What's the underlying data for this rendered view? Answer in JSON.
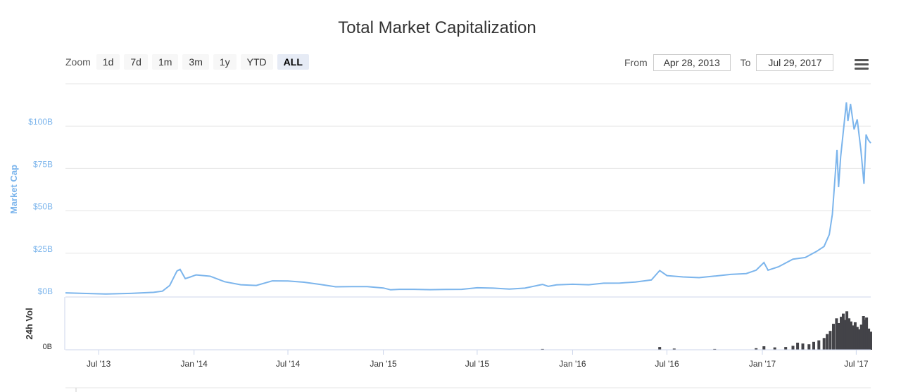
{
  "title": "Total Market Capitalization",
  "zoom": {
    "label": "Zoom",
    "buttons": [
      "1d",
      "7d",
      "1m",
      "3m",
      "1y",
      "YTD",
      "ALL"
    ],
    "active": "ALL"
  },
  "range": {
    "from_label": "From",
    "from_value": "Apr 28, 2013",
    "to_label": "To",
    "to_value": "Jul 29, 2017"
  },
  "colors": {
    "line": "#7cb5ec",
    "volume": "#434348",
    "grid": "#e6e6e6",
    "axis_label": "#7cb5ec"
  },
  "chart_data": [
    {
      "type": "line",
      "ylabel": "Market Cap",
      "yticks": [
        "$0B",
        "$25B",
        "$50B",
        "$75B",
        "$100B"
      ],
      "ylim": [
        0,
        125
      ],
      "xlim": [
        "2013-04-28",
        "2017-07-29"
      ],
      "x_ticks": [
        {
          "label": "Jul '13",
          "date": "2013-07-01"
        },
        {
          "label": "Jan '14",
          "date": "2014-01-01"
        },
        {
          "label": "Jul '14",
          "date": "2014-07-01"
        },
        {
          "label": "Jan '15",
          "date": "2015-01-01"
        },
        {
          "label": "Jul '15",
          "date": "2015-07-01"
        },
        {
          "label": "Jan '16",
          "date": "2016-01-01"
        },
        {
          "label": "Jul '16",
          "date": "2016-07-01"
        },
        {
          "label": "Jan '17",
          "date": "2017-01-01"
        },
        {
          "label": "Jul '17",
          "date": "2017-07-01"
        }
      ],
      "series": [
        {
          "points": [
            [
              "2013-04-28",
              1.6
            ],
            [
              "2013-06-01",
              1.3
            ],
            [
              "2013-07-15",
              0.9
            ],
            [
              "2013-09-01",
              1.3
            ],
            [
              "2013-10-15",
              1.9
            ],
            [
              "2013-11-01",
              2.6
            ],
            [
              "2013-11-15",
              6
            ],
            [
              "2013-11-29",
              14.5
            ],
            [
              "2013-12-05",
              15.5
            ],
            [
              "2013-12-15",
              10
            ],
            [
              "2013-12-25",
              11
            ],
            [
              "2014-01-05",
              12.2
            ],
            [
              "2014-02-01",
              11.4
            ],
            [
              "2014-03-01",
              8.2
            ],
            [
              "2014-04-01",
              6.4
            ],
            [
              "2014-05-01",
              6
            ],
            [
              "2014-06-01",
              8.7
            ],
            [
              "2014-07-01",
              8.6
            ],
            [
              "2014-08-01",
              7.9
            ],
            [
              "2014-09-01",
              6.6
            ],
            [
              "2014-10-01",
              5.2
            ],
            [
              "2014-11-01",
              5.3
            ],
            [
              "2014-12-01",
              5.3
            ],
            [
              "2015-01-01",
              4.5
            ],
            [
              "2015-01-15",
              3.4
            ],
            [
              "2015-02-01",
              3.7
            ],
            [
              "2015-03-01",
              3.7
            ],
            [
              "2015-04-01",
              3.5
            ],
            [
              "2015-05-01",
              3.6
            ],
            [
              "2015-06-01",
              3.7
            ],
            [
              "2015-07-01",
              4.6
            ],
            [
              "2015-08-01",
              4.4
            ],
            [
              "2015-09-01",
              3.8
            ],
            [
              "2015-10-01",
              4.4
            ],
            [
              "2015-11-04",
              6.6
            ],
            [
              "2015-11-15",
              5.5
            ],
            [
              "2015-12-01",
              6.3
            ],
            [
              "2016-01-01",
              6.7
            ],
            [
              "2016-02-01",
              6.4
            ],
            [
              "2016-03-01",
              7.3
            ],
            [
              "2016-04-01",
              7.4
            ],
            [
              "2016-05-01",
              8
            ],
            [
              "2016-06-01",
              9.2
            ],
            [
              "2016-06-17",
              14.8
            ],
            [
              "2016-07-01",
              11.8
            ],
            [
              "2016-08-01",
              11
            ],
            [
              "2016-09-01",
              10.6
            ],
            [
              "2016-10-01",
              11.5
            ],
            [
              "2016-11-01",
              12.5
            ],
            [
              "2016-12-01",
              13
            ],
            [
              "2016-12-20",
              15
            ],
            [
              "2017-01-04",
              19.5
            ],
            [
              "2017-01-12",
              15
            ],
            [
              "2017-02-01",
              17
            ],
            [
              "2017-03-01",
              21.5
            ],
            [
              "2017-03-25",
              22.5
            ],
            [
              "2017-04-15",
              26
            ],
            [
              "2017-04-30",
              29
            ],
            [
              "2017-05-10",
              36
            ],
            [
              "2017-05-16",
              48
            ],
            [
              "2017-05-25",
              86
            ],
            [
              "2017-05-28",
              64
            ],
            [
              "2017-06-01",
              82
            ],
            [
              "2017-06-12",
              114
            ],
            [
              "2017-06-15",
              103
            ],
            [
              "2017-06-20",
              113
            ],
            [
              "2017-06-27",
              98
            ],
            [
              "2017-07-03",
              104
            ],
            [
              "2017-07-10",
              86
            ],
            [
              "2017-07-16",
              66
            ],
            [
              "2017-07-20",
              95
            ],
            [
              "2017-07-24",
              92
            ],
            [
              "2017-07-29",
              90
            ]
          ]
        }
      ]
    },
    {
      "type": "bar",
      "ylabel": "24h Vol",
      "yticks": [
        "0B"
      ],
      "ylim": [
        0,
        6
      ],
      "points": [
        [
          "2013-05-01",
          0.01
        ],
        [
          "2013-11-29",
          0.04
        ],
        [
          "2014-02-01",
          0.03
        ],
        [
          "2015-01-15",
          0.03
        ],
        [
          "2015-11-04",
          0.1
        ],
        [
          "2016-06-17",
          0.35
        ],
        [
          "2016-07-15",
          0.15
        ],
        [
          "2016-10-01",
          0.1
        ],
        [
          "2016-12-20",
          0.2
        ],
        [
          "2017-01-04",
          0.45
        ],
        [
          "2017-01-25",
          0.3
        ],
        [
          "2017-02-15",
          0.35
        ],
        [
          "2017-03-01",
          0.5
        ],
        [
          "2017-03-10",
          0.9
        ],
        [
          "2017-03-20",
          0.8
        ],
        [
          "2017-04-01",
          0.7
        ],
        [
          "2017-04-10",
          1.0
        ],
        [
          "2017-04-20",
          1.2
        ],
        [
          "2017-04-30",
          1.5
        ],
        [
          "2017-05-06",
          2.0
        ],
        [
          "2017-05-12",
          2.4
        ],
        [
          "2017-05-18",
          3.3
        ],
        [
          "2017-05-24",
          4.0
        ],
        [
          "2017-05-28",
          3.4
        ],
        [
          "2017-06-02",
          4.2
        ],
        [
          "2017-06-06",
          4.6
        ],
        [
          "2017-06-10",
          3.8
        ],
        [
          "2017-06-13",
          4.9
        ],
        [
          "2017-06-17",
          4.0
        ],
        [
          "2017-06-21",
          3.6
        ],
        [
          "2017-06-25",
          3.1
        ],
        [
          "2017-06-29",
          3.5
        ],
        [
          "2017-07-03",
          2.9
        ],
        [
          "2017-07-07",
          2.6
        ],
        [
          "2017-07-11",
          3.2
        ],
        [
          "2017-07-15",
          4.3
        ],
        [
          "2017-07-18",
          3.8
        ],
        [
          "2017-07-21",
          4.1
        ],
        [
          "2017-07-25",
          2.7
        ],
        [
          "2017-07-29",
          2.3
        ]
      ]
    }
  ]
}
